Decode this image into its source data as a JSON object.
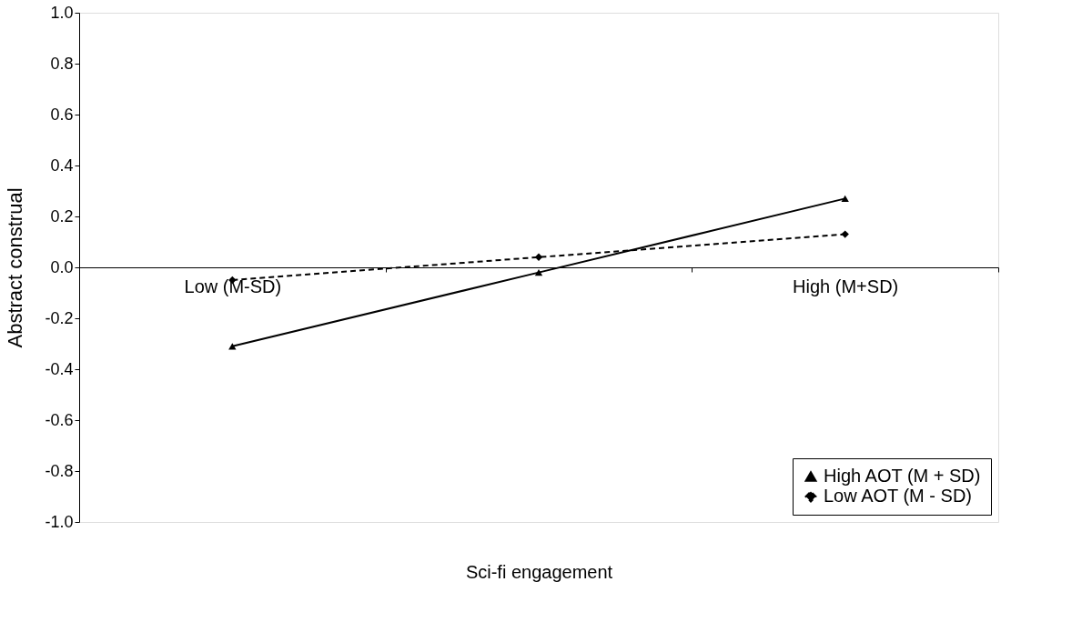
{
  "chart_data": {
    "type": "line",
    "xlabel": "Sci-fi engagement",
    "ylabel": "Abstract construal",
    "categories": [
      "Low (M-SD)",
      null,
      "High (M+SD)"
    ],
    "series": [
      {
        "name": "High AOT (M + SD)",
        "color": "#000000",
        "marker": "triangle",
        "line_style": "solid",
        "values": [
          -0.31,
          -0.02,
          0.27
        ]
      },
      {
        "name": "Low AOT (M - SD)",
        "color": "#000000",
        "marker": "diamond",
        "line_style": "dashed",
        "values": [
          -0.05,
          0.04,
          0.13
        ]
      }
    ],
    "ylim": [
      -1,
      1
    ],
    "yticks": [
      {
        "value": -1,
        "label": "-1.0"
      },
      {
        "value": -0.8,
        "label": "-0.8"
      },
      {
        "value": -0.6,
        "label": "-0.6"
      },
      {
        "value": -0.4,
        "label": "-0.4"
      },
      {
        "value": -0.2,
        "label": "-0.2"
      },
      {
        "value": 0,
        "label": "0.0"
      },
      0.2,
      0.4,
      0.6,
      0.8,
      {
        "value": 1,
        "label": "1.0"
      }
    ],
    "grid": false,
    "legend": "bottom right"
  }
}
